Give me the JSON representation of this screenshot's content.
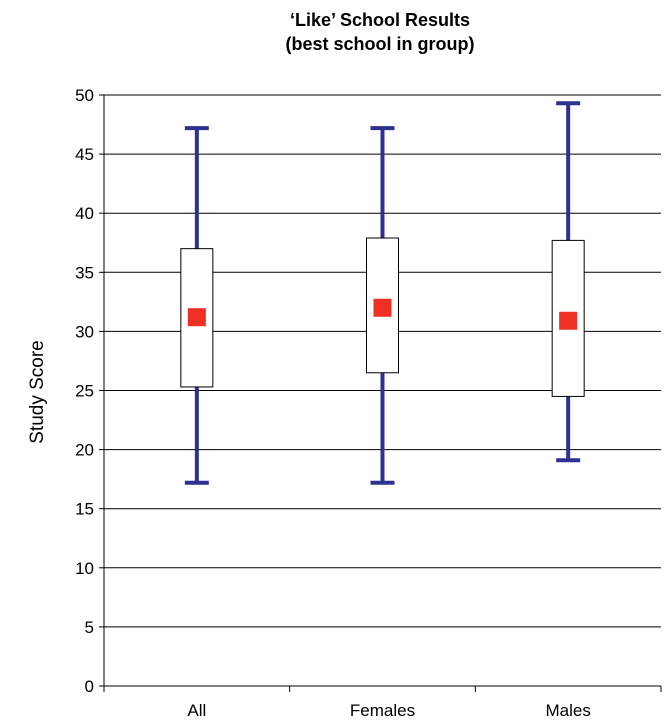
{
  "chart_data": {
    "type": "box",
    "title_lines": [
      "‘Like’ School Results",
      "(best school in group)"
    ],
    "xlabel": "",
    "ylabel": "Study Score",
    "ylim": [
      0,
      50
    ],
    "yticks": [
      0,
      5,
      10,
      15,
      20,
      25,
      30,
      35,
      40,
      45,
      50
    ],
    "grid": true,
    "categories": [
      "All",
      "Females",
      "Males"
    ],
    "boxes": [
      {
        "category": "All",
        "min": 17.2,
        "q1": 25.3,
        "mean": 31.2,
        "q3": 37.0,
        "max": 47.2
      },
      {
        "category": "Females",
        "min": 17.2,
        "q1": 26.5,
        "mean": 32.0,
        "q3": 37.9,
        "max": 47.2
      },
      {
        "category": "Males",
        "min": 19.1,
        "q1": 24.5,
        "mean": 30.9,
        "q3": 37.7,
        "max": 49.3
      }
    ],
    "colors": {
      "whisker": "#2e3192",
      "mean_marker": "#ee3124",
      "box_fill": "#ffffff",
      "box_stroke": "#000000",
      "grid": "#000000"
    }
  }
}
